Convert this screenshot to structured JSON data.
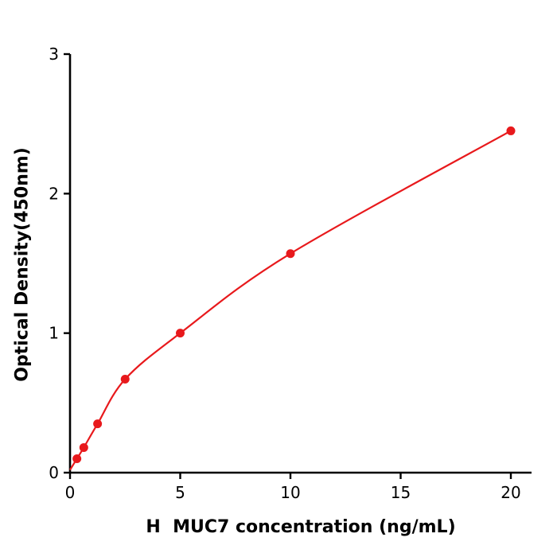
{
  "chart_data": {
    "type": "scatter",
    "title": "",
    "xlabel": "H  MUC7 concentration (ng/mL)",
    "ylabel": "Optical Density(450nm)",
    "x": [
      0.313,
      0.625,
      1.25,
      2.5,
      5,
      10,
      20
    ],
    "y": [
      0.1,
      0.18,
      0.35,
      0.67,
      1.0,
      1.57,
      2.45
    ],
    "curve_start": {
      "x": 0,
      "y": 0.02
    },
    "xlim": [
      0,
      20.9
    ],
    "ylim": [
      0,
      3
    ],
    "x_ticks": [
      0,
      5,
      10,
      15,
      20
    ],
    "y_ticks": [
      0,
      1,
      2,
      3
    ],
    "point_color": "#e8191c",
    "line_color": "#e8191c",
    "axis_color": "#000000",
    "grid": false,
    "legend_position": "none",
    "marker_radius": 5.5,
    "line_width": 2.2
  }
}
